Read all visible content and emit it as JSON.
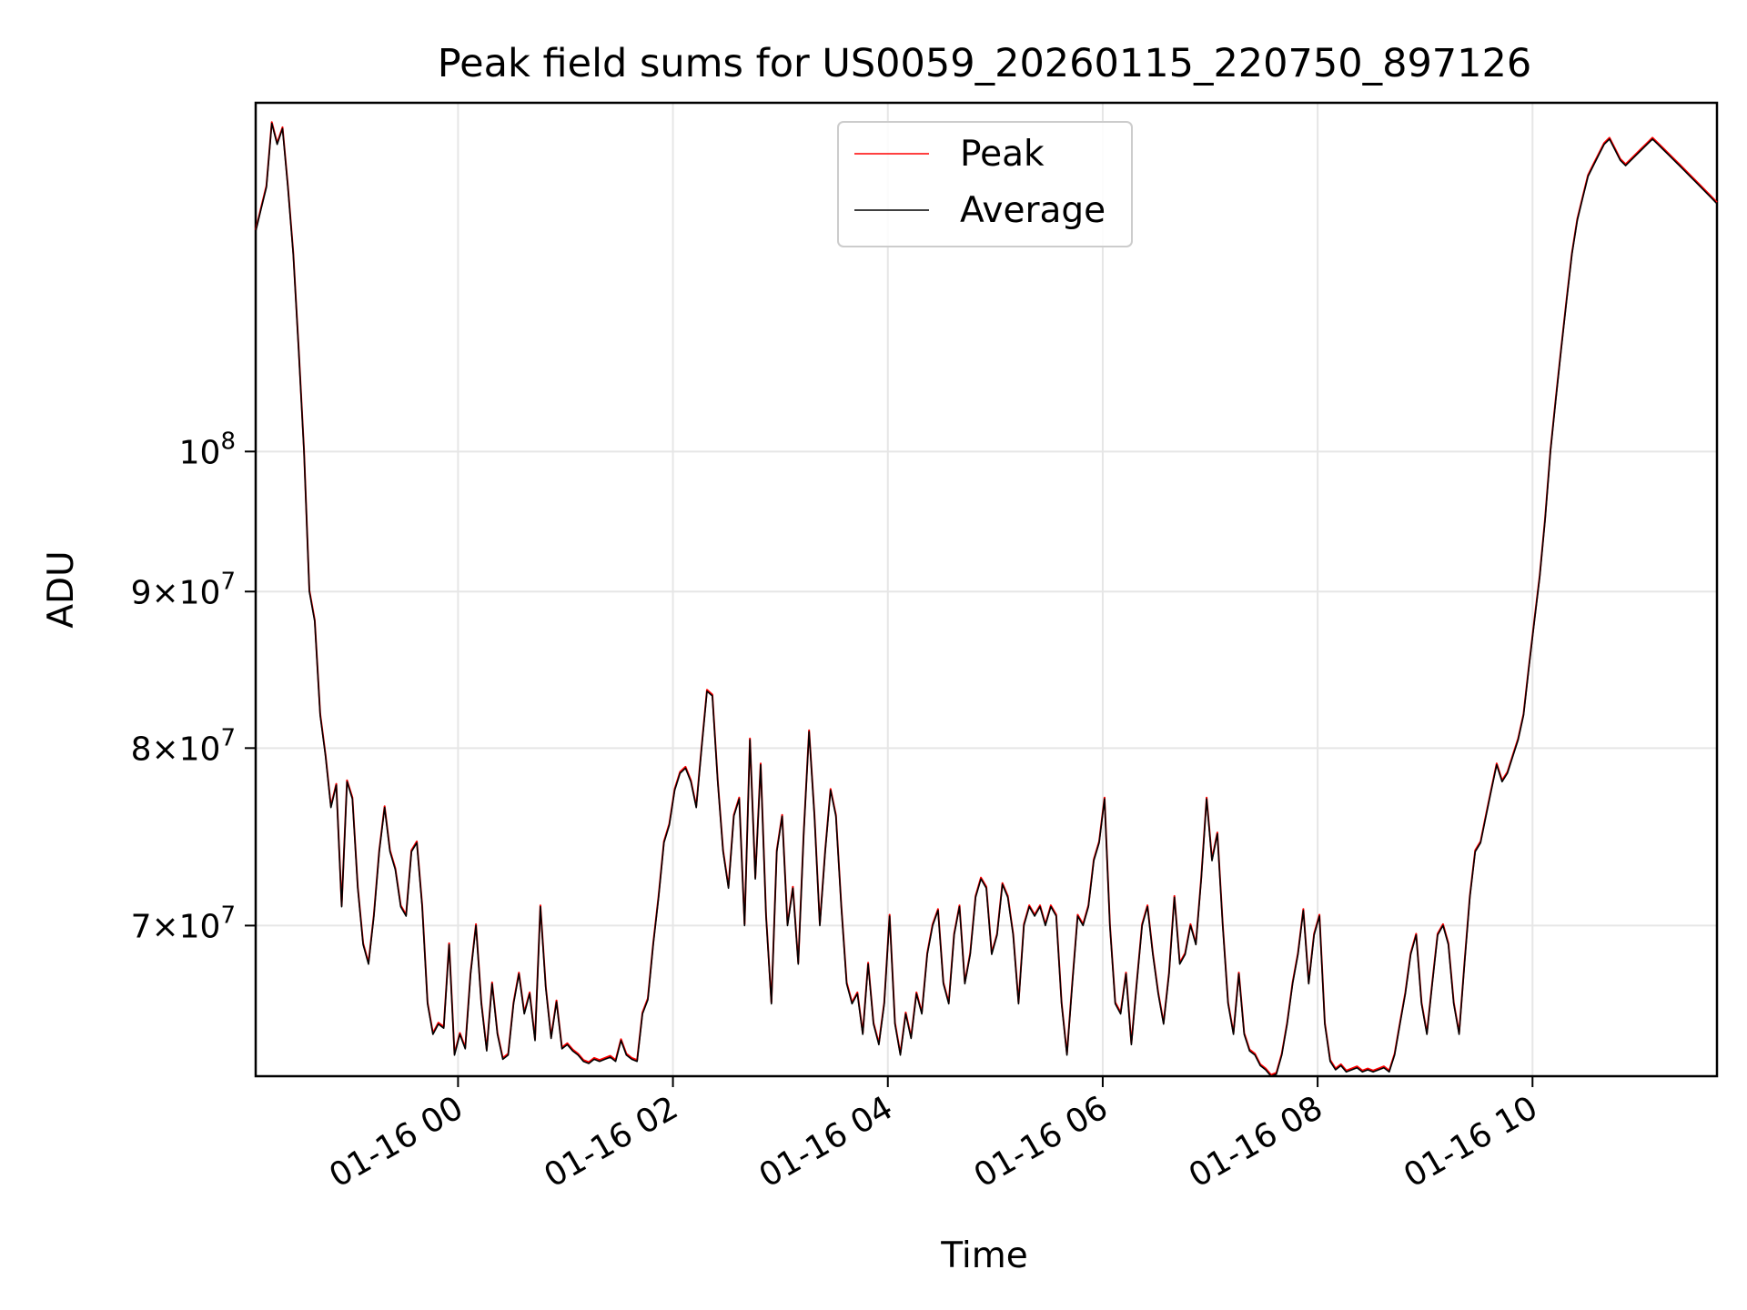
{
  "chart_data": {
    "type": "line",
    "title": "Peak field sums for US0059_20260115_220750_897126",
    "xlabel": "Time",
    "ylabel": "ADU",
    "yscale": "log",
    "xlim": [
      "2026-01-15 22:07",
      "2026-01-16 11:43"
    ],
    "ylim": [
      62500000,
      130000000
    ],
    "grid": true,
    "legend_position": "top-center",
    "x_ticks": [
      {
        "value": "2026-01-16 00:00",
        "label": "01-16 00"
      },
      {
        "value": "2026-01-16 02:00",
        "label": "01-16 02"
      },
      {
        "value": "2026-01-16 04:00",
        "label": "01-16 04"
      },
      {
        "value": "2026-01-16 06:00",
        "label": "01-16 06"
      },
      {
        "value": "2026-01-16 08:00",
        "label": "01-16 08"
      },
      {
        "value": "2026-01-16 10:00",
        "label": "01-16 10"
      }
    ],
    "y_ticks": [
      {
        "value": 70000000,
        "mantissa": "7",
        "base": "10",
        "exp": "7"
      },
      {
        "value": 80000000,
        "mantissa": "8",
        "base": "10",
        "exp": "7"
      },
      {
        "value": 90000000,
        "mantissa": "9",
        "base": "10",
        "exp": "7"
      },
      {
        "value": 100000000,
        "mantissa": "",
        "base": "10",
        "exp": "8"
      }
    ],
    "series": [
      {
        "name": "Peak",
        "color": "#ff0000"
      },
      {
        "name": "Average",
        "color": "#000000"
      }
    ],
    "points": [
      [
        "2026-01-15 22:07",
        118000000
      ],
      [
        "2026-01-15 22:10",
        120000000
      ],
      [
        "2026-01-15 22:13",
        122000000
      ],
      [
        "2026-01-15 22:16",
        128000000
      ],
      [
        "2026-01-15 22:19",
        126000000
      ],
      [
        "2026-01-15 22:22",
        127500000
      ],
      [
        "2026-01-15 22:25",
        122000000
      ],
      [
        "2026-01-15 22:28",
        116000000
      ],
      [
        "2026-01-15 22:31",
        108000000
      ],
      [
        "2026-01-15 22:34",
        100000000
      ],
      [
        "2026-01-15 22:37",
        90000000
      ],
      [
        "2026-01-15 22:40",
        88000000
      ],
      [
        "2026-01-15 22:43",
        82000000
      ],
      [
        "2026-01-15 22:46",
        79500000
      ],
      [
        "2026-01-15 22:49",
        76500000
      ],
      [
        "2026-01-15 22:52",
        77800000
      ],
      [
        "2026-01-15 22:55",
        71000000
      ],
      [
        "2026-01-15 22:58",
        78000000
      ],
      [
        "2026-01-15 23:01",
        77000000
      ],
      [
        "2026-01-15 23:04",
        72000000
      ],
      [
        "2026-01-15 23:07",
        69000000
      ],
      [
        "2026-01-15 23:10",
        68000000
      ],
      [
        "2026-01-15 23:13",
        70500000
      ],
      [
        "2026-01-15 23:16",
        74000000
      ],
      [
        "2026-01-15 23:19",
        76500000
      ],
      [
        "2026-01-15 23:22",
        74000000
      ],
      [
        "2026-01-15 23:25",
        73000000
      ],
      [
        "2026-01-15 23:28",
        71000000
      ],
      [
        "2026-01-15 23:31",
        70500000
      ],
      [
        "2026-01-15 23:34",
        74000000
      ],
      [
        "2026-01-15 23:37",
        74500000
      ],
      [
        "2026-01-15 23:40",
        71000000
      ],
      [
        "2026-01-15 23:43",
        66000000
      ],
      [
        "2026-01-15 23:46",
        64500000
      ],
      [
        "2026-01-15 23:49",
        65000000
      ],
      [
        "2026-01-15 23:52",
        64800000
      ],
      [
        "2026-01-15 23:55",
        69000000
      ],
      [
        "2026-01-15 23:58",
        63500000
      ],
      [
        "2026-01-16 00:01",
        64500000
      ],
      [
        "2026-01-16 00:04",
        63800000
      ],
      [
        "2026-01-16 00:07",
        67500000
      ],
      [
        "2026-01-16 00:10",
        70000000
      ],
      [
        "2026-01-16 00:13",
        66000000
      ],
      [
        "2026-01-16 00:16",
        63700000
      ],
      [
        "2026-01-16 00:19",
        67000000
      ],
      [
        "2026-01-16 00:22",
        64500000
      ],
      [
        "2026-01-16 00:25",
        63300000
      ],
      [
        "2026-01-16 00:28",
        63500000
      ],
      [
        "2026-01-16 00:31",
        66000000
      ],
      [
        "2026-01-16 00:34",
        67500000
      ],
      [
        "2026-01-16 00:37",
        65500000
      ],
      [
        "2026-01-16 00:40",
        66500000
      ],
      [
        "2026-01-16 00:43",
        64200000
      ],
      [
        "2026-01-16 00:46",
        71000000
      ],
      [
        "2026-01-16 00:49",
        66800000
      ],
      [
        "2026-01-16 00:52",
        64300000
      ],
      [
        "2026-01-16 00:55",
        66100000
      ],
      [
        "2026-01-16 00:58",
        63800000
      ],
      [
        "2026-01-16 01:01",
        64000000
      ],
      [
        "2026-01-16 01:04",
        63700000
      ],
      [
        "2026-01-16 01:07",
        63500000
      ],
      [
        "2026-01-16 01:10",
        63200000
      ],
      [
        "2026-01-16 01:13",
        63100000
      ],
      [
        "2026-01-16 01:16",
        63300000
      ],
      [
        "2026-01-16 01:19",
        63200000
      ],
      [
        "2026-01-16 01:22",
        63300000
      ],
      [
        "2026-01-16 01:25",
        63400000
      ],
      [
        "2026-01-16 01:28",
        63200000
      ],
      [
        "2026-01-16 01:31",
        64200000
      ],
      [
        "2026-01-16 01:34",
        63500000
      ],
      [
        "2026-01-16 01:37",
        63300000
      ],
      [
        "2026-01-16 01:40",
        63200000
      ],
      [
        "2026-01-16 01:43",
        65500000
      ],
      [
        "2026-01-16 01:46",
        66200000
      ],
      [
        "2026-01-16 01:49",
        69000000
      ],
      [
        "2026-01-16 01:52",
        71500000
      ],
      [
        "2026-01-16 01:55",
        74500000
      ],
      [
        "2026-01-16 01:58",
        75500000
      ],
      [
        "2026-01-16 02:01",
        77500000
      ],
      [
        "2026-01-16 02:04",
        78500000
      ],
      [
        "2026-01-16 02:07",
        78800000
      ],
      [
        "2026-01-16 02:10",
        78000000
      ],
      [
        "2026-01-16 02:13",
        76500000
      ],
      [
        "2026-01-16 02:16",
        80000000
      ],
      [
        "2026-01-16 02:19",
        83500000
      ],
      [
        "2026-01-16 02:22",
        83200000
      ],
      [
        "2026-01-16 02:25",
        78000000
      ],
      [
        "2026-01-16 02:28",
        74000000
      ],
      [
        "2026-01-16 02:31",
        72000000
      ],
      [
        "2026-01-16 02:34",
        76000000
      ],
      [
        "2026-01-16 02:37",
        77000000
      ],
      [
        "2026-01-16 02:40",
        70000000
      ],
      [
        "2026-01-16 02:43",
        80500000
      ],
      [
        "2026-01-16 02:46",
        72500000
      ],
      [
        "2026-01-16 02:49",
        79000000
      ],
      [
        "2026-01-16 02:52",
        70500000
      ],
      [
        "2026-01-16 02:55",
        66000000
      ],
      [
        "2026-01-16 02:58",
        74000000
      ],
      [
        "2026-01-16 03:01",
        76000000
      ],
      [
        "2026-01-16 03:04",
        70000000
      ],
      [
        "2026-01-16 03:07",
        72000000
      ],
      [
        "2026-01-16 03:10",
        68000000
      ],
      [
        "2026-01-16 03:13",
        75000000
      ],
      [
        "2026-01-16 03:16",
        81000000
      ],
      [
        "2026-01-16 03:19",
        76000000
      ],
      [
        "2026-01-16 03:22",
        70000000
      ],
      [
        "2026-01-16 03:25",
        74000000
      ],
      [
        "2026-01-16 03:28",
        77500000
      ],
      [
        "2026-01-16 03:31",
        76000000
      ],
      [
        "2026-01-16 03:34",
        71000000
      ],
      [
        "2026-01-16 03:37",
        67000000
      ],
      [
        "2026-01-16 03:40",
        66000000
      ],
      [
        "2026-01-16 03:43",
        66500000
      ],
      [
        "2026-01-16 03:46",
        64500000
      ],
      [
        "2026-01-16 03:49",
        68000000
      ],
      [
        "2026-01-16 03:52",
        65000000
      ],
      [
        "2026-01-16 03:55",
        64000000
      ],
      [
        "2026-01-16 03:58",
        66000000
      ],
      [
        "2026-01-16 04:01",
        70500000
      ],
      [
        "2026-01-16 04:04",
        65000000
      ],
      [
        "2026-01-16 04:07",
        63500000
      ],
      [
        "2026-01-16 04:10",
        65500000
      ],
      [
        "2026-01-16 04:13",
        64300000
      ],
      [
        "2026-01-16 04:16",
        66500000
      ],
      [
        "2026-01-16 04:19",
        65500000
      ],
      [
        "2026-01-16 04:22",
        68500000
      ],
      [
        "2026-01-16 04:25",
        70000000
      ],
      [
        "2026-01-16 04:28",
        70800000
      ],
      [
        "2026-01-16 04:31",
        67000000
      ],
      [
        "2026-01-16 04:34",
        66000000
      ],
      [
        "2026-01-16 04:37",
        69500000
      ],
      [
        "2026-01-16 04:40",
        71000000
      ],
      [
        "2026-01-16 04:43",
        67000000
      ],
      [
        "2026-01-16 04:46",
        68500000
      ],
      [
        "2026-01-16 04:49",
        71500000
      ],
      [
        "2026-01-16 04:52",
        72500000
      ],
      [
        "2026-01-16 04:55",
        72000000
      ],
      [
        "2026-01-16 04:58",
        68500000
      ],
      [
        "2026-01-16 05:01",
        69500000
      ],
      [
        "2026-01-16 05:04",
        72200000
      ],
      [
        "2026-01-16 05:07",
        71500000
      ],
      [
        "2026-01-16 05:10",
        69500000
      ],
      [
        "2026-01-16 05:13",
        66000000
      ],
      [
        "2026-01-16 05:16",
        70000000
      ],
      [
        "2026-01-16 05:19",
        71000000
      ],
      [
        "2026-01-16 05:22",
        70500000
      ],
      [
        "2026-01-16 05:25",
        71000000
      ],
      [
        "2026-01-16 05:28",
        70000000
      ],
      [
        "2026-01-16 05:31",
        71000000
      ],
      [
        "2026-01-16 05:34",
        70500000
      ],
      [
        "2026-01-16 05:37",
        66000000
      ],
      [
        "2026-01-16 05:40",
        63500000
      ],
      [
        "2026-01-16 05:43",
        67000000
      ],
      [
        "2026-01-16 05:46",
        70500000
      ],
      [
        "2026-01-16 05:49",
        70000000
      ],
      [
        "2026-01-16 05:52",
        71000000
      ],
      [
        "2026-01-16 05:55",
        73500000
      ],
      [
        "2026-01-16 05:58",
        74500000
      ],
      [
        "2026-01-16 06:01",
        77000000
      ],
      [
        "2026-01-16 06:04",
        70000000
      ],
      [
        "2026-01-16 06:07",
        66000000
      ],
      [
        "2026-01-16 06:10",
        65500000
      ],
      [
        "2026-01-16 06:13",
        67500000
      ],
      [
        "2026-01-16 06:16",
        64000000
      ],
      [
        "2026-01-16 06:19",
        67000000
      ],
      [
        "2026-01-16 06:22",
        70000000
      ],
      [
        "2026-01-16 06:25",
        71000000
      ],
      [
        "2026-01-16 06:28",
        68500000
      ],
      [
        "2026-01-16 06:31",
        66500000
      ],
      [
        "2026-01-16 06:34",
        65000000
      ],
      [
        "2026-01-16 06:37",
        67500000
      ],
      [
        "2026-01-16 06:40",
        71500000
      ],
      [
        "2026-01-16 06:43",
        68000000
      ],
      [
        "2026-01-16 06:46",
        68500000
      ],
      [
        "2026-01-16 06:49",
        70000000
      ],
      [
        "2026-01-16 06:52",
        69000000
      ],
      [
        "2026-01-16 06:55",
        72500000
      ],
      [
        "2026-01-16 06:58",
        77000000
      ],
      [
        "2026-01-16 07:01",
        73500000
      ],
      [
        "2026-01-16 07:04",
        75000000
      ],
      [
        "2026-01-16 07:07",
        70000000
      ],
      [
        "2026-01-16 07:10",
        66000000
      ],
      [
        "2026-01-16 07:13",
        64500000
      ],
      [
        "2026-01-16 07:16",
        67500000
      ],
      [
        "2026-01-16 07:19",
        64500000
      ],
      [
        "2026-01-16 07:22",
        63700000
      ],
      [
        "2026-01-16 07:25",
        63500000
      ],
      [
        "2026-01-16 07:28",
        63000000
      ],
      [
        "2026-01-16 07:31",
        62800000
      ],
      [
        "2026-01-16 07:34",
        62500000
      ],
      [
        "2026-01-16 07:37",
        62600000
      ],
      [
        "2026-01-16 07:40",
        63500000
      ],
      [
        "2026-01-16 07:43",
        65000000
      ],
      [
        "2026-01-16 07:46",
        67000000
      ],
      [
        "2026-01-16 07:49",
        68500000
      ],
      [
        "2026-01-16 07:52",
        70800000
      ],
      [
        "2026-01-16 07:55",
        67000000
      ],
      [
        "2026-01-16 07:58",
        69500000
      ],
      [
        "2026-01-16 08:01",
        70500000
      ],
      [
        "2026-01-16 08:04",
        65000000
      ],
      [
        "2026-01-16 08:07",
        63200000
      ],
      [
        "2026-01-16 08:10",
        62800000
      ],
      [
        "2026-01-16 08:13",
        63000000
      ],
      [
        "2026-01-16 08:16",
        62700000
      ],
      [
        "2026-01-16 08:19",
        62800000
      ],
      [
        "2026-01-16 08:22",
        62900000
      ],
      [
        "2026-01-16 08:25",
        62700000
      ],
      [
        "2026-01-16 08:28",
        62800000
      ],
      [
        "2026-01-16 08:31",
        62700000
      ],
      [
        "2026-01-16 08:34",
        62800000
      ],
      [
        "2026-01-16 08:37",
        62900000
      ],
      [
        "2026-01-16 08:40",
        62700000
      ],
      [
        "2026-01-16 08:43",
        63500000
      ],
      [
        "2026-01-16 08:46",
        65000000
      ],
      [
        "2026-01-16 08:49",
        66500000
      ],
      [
        "2026-01-16 08:52",
        68500000
      ],
      [
        "2026-01-16 08:55",
        69500000
      ],
      [
        "2026-01-16 08:58",
        66000000
      ],
      [
        "2026-01-16 09:01",
        64500000
      ],
      [
        "2026-01-16 09:04",
        67000000
      ],
      [
        "2026-01-16 09:07",
        69500000
      ],
      [
        "2026-01-16 09:10",
        70000000
      ],
      [
        "2026-01-16 09:13",
        69000000
      ],
      [
        "2026-01-16 09:16",
        66000000
      ],
      [
        "2026-01-16 09:19",
        64500000
      ],
      [
        "2026-01-16 09:22",
        68000000
      ],
      [
        "2026-01-16 09:25",
        71500000
      ],
      [
        "2026-01-16 09:28",
        74000000
      ],
      [
        "2026-01-16 09:31",
        74500000
      ],
      [
        "2026-01-16 09:34",
        76000000
      ],
      [
        "2026-01-16 09:37",
        77500000
      ],
      [
        "2026-01-16 09:40",
        79000000
      ],
      [
        "2026-01-16 09:43",
        78000000
      ],
      [
        "2026-01-16 09:46",
        78500000
      ],
      [
        "2026-01-16 09:49",
        79500000
      ],
      [
        "2026-01-16 09:52",
        80500000
      ],
      [
        "2026-01-16 09:55",
        82000000
      ],
      [
        "2026-01-16 09:58",
        85000000
      ],
      [
        "2026-01-16 10:01",
        88000000
      ],
      [
        "2026-01-16 10:04",
        91000000
      ],
      [
        "2026-01-16 10:07",
        95000000
      ],
      [
        "2026-01-16 10:10",
        100000000
      ],
      [
        "2026-01-16 10:13",
        104000000
      ],
      [
        "2026-01-16 10:16",
        108000000
      ],
      [
        "2026-01-16 10:19",
        112000000
      ],
      [
        "2026-01-16 10:22",
        116000000
      ],
      [
        "2026-01-16 10:25",
        119000000
      ],
      [
        "2026-01-16 10:28",
        121000000
      ],
      [
        "2026-01-16 10:31",
        123000000
      ],
      [
        "2026-01-16 10:34",
        124000000
      ],
      [
        "2026-01-16 10:37",
        125000000
      ],
      [
        "2026-01-16 10:40",
        126000000
      ],
      [
        "2026-01-16 10:43",
        126500000
      ],
      [
        "2026-01-16 10:46",
        125500000
      ],
      [
        "2026-01-16 10:49",
        124500000
      ],
      [
        "2026-01-16 10:52",
        124000000
      ],
      [
        "2026-01-16 10:55",
        124500000
      ],
      [
        "2026-01-16 10:58",
        125000000
      ],
      [
        "2026-01-16 11:01",
        125500000
      ],
      [
        "2026-01-16 11:04",
        126000000
      ],
      [
        "2026-01-16 11:07",
        126500000
      ],
      [
        "2026-01-16 11:10",
        126000000
      ],
      [
        "2026-01-16 11:13",
        125500000
      ],
      [
        "2026-01-16 11:16",
        125000000
      ],
      [
        "2026-01-16 11:19",
        124500000
      ],
      [
        "2026-01-16 11:22",
        124000000
      ],
      [
        "2026-01-16 11:25",
        123500000
      ],
      [
        "2026-01-16 11:28",
        123000000
      ],
      [
        "2026-01-16 11:31",
        122500000
      ],
      [
        "2026-01-16 11:34",
        122000000
      ],
      [
        "2026-01-16 11:37",
        121500000
      ],
      [
        "2026-01-16 11:40",
        121000000
      ],
      [
        "2026-01-16 11:43",
        120500000
      ]
    ]
  }
}
